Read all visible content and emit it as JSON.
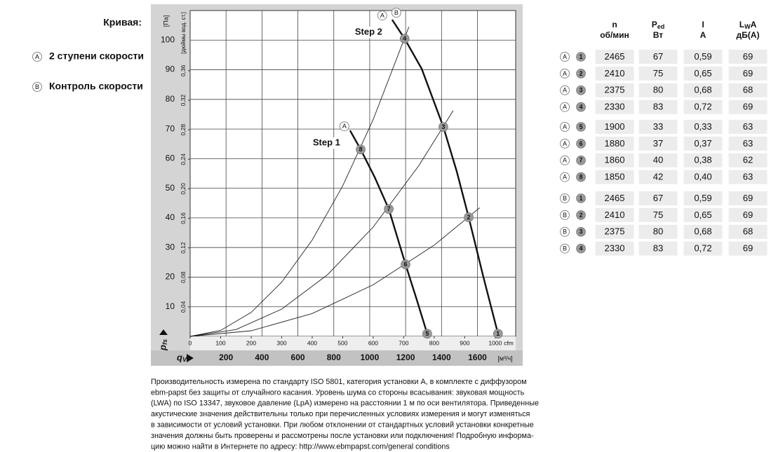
{
  "chart_data": {
    "type": "line",
    "legend_title": "Кривая:",
    "legend": [
      {
        "letter": "A",
        "text": "2 ступени скорости"
      },
      {
        "letter": "B",
        "text": "Контроль скорости"
      }
    ],
    "y_label": "[Па]",
    "y2_label": "[дюймы вод. ст.]",
    "y_symbol": "p",
    "y_symbol_sub": "fs",
    "x_symbol": "q",
    "x_symbol_sub": "V",
    "x_unit": "cfm",
    "x2_unit": "[м³/ч]",
    "xlim": [
      0,
      1067
    ],
    "xticks": [
      0,
      100,
      200,
      300,
      400,
      500,
      600,
      700,
      800,
      900,
      1000
    ],
    "x2lim": [
      0,
      1813
    ],
    "x2ticks": [
      200,
      400,
      600,
      800,
      1000,
      1200,
      1400,
      1600
    ],
    "ylim": [
      0,
      110
    ],
    "yticks": [
      10,
      20,
      30,
      40,
      50,
      60,
      70,
      80,
      90,
      100
    ],
    "y2lim": [
      0,
      0.4416
    ],
    "y2ticks": [
      {
        "value": 0.04,
        "label": "0,04"
      },
      {
        "value": 0.08,
        "label": "0,08"
      },
      {
        "value": 0.12,
        "label": "0,12"
      },
      {
        "value": 0.16,
        "label": "0,16"
      },
      {
        "value": 0.2,
        "label": "0,20"
      },
      {
        "value": 0.24,
        "label": "0,24"
      },
      {
        "value": 0.28,
        "label": "0,28"
      },
      {
        "value": 0.32,
        "label": "0,32"
      },
      {
        "value": 0.36,
        "label": "0,36"
      }
    ],
    "grid": true,
    "series": [
      {
        "label": "Step 2",
        "curves": [
          "A",
          "B"
        ],
        "kind": "characteristic",
        "color": "#111111",
        "x": [
          662,
          703,
          759,
          830,
          874,
          913,
          961,
          1009
        ],
        "values": [
          106.9,
          100.5,
          90.3,
          70.7,
          55.6,
          40.2,
          20.1,
          0.9
        ]
      },
      {
        "label": "Step 1",
        "curves": [
          "A"
        ],
        "kind": "characteristic",
        "color": "#111111",
        "x": [
          524,
          559,
          605,
          651,
          706,
          743,
          777
        ],
        "values": [
          69.5,
          63.1,
          53.7,
          43.0,
          24.3,
          12.3,
          0.9
        ]
      },
      {
        "kind": "system",
        "color": "#222222",
        "x": [
          0,
          100,
          200,
          300,
          400,
          500,
          600,
          717
        ],
        "values": [
          0,
          2.0,
          8.1,
          18.3,
          32.5,
          50.8,
          73.2,
          104.5
        ]
      },
      {
        "kind": "system",
        "color": "#222222",
        "x": [
          0,
          150,
          300,
          450,
          600,
          750,
          862
        ],
        "values": [
          0,
          2.3,
          9.2,
          20.8,
          36.9,
          57.7,
          76.2
        ]
      },
      {
        "kind": "system",
        "color": "#222222",
        "x": [
          0,
          200,
          400,
          600,
          800,
          949
        ],
        "values": [
          0,
          1.9,
          7.7,
          17.4,
          30.8,
          43.4
        ]
      }
    ],
    "points": [
      {
        "label": "1",
        "x": 1009,
        "y": 0.9
      },
      {
        "label": "2",
        "x": 913,
        "y": 40.2
      },
      {
        "label": "3",
        "x": 830,
        "y": 70.7
      },
      {
        "label": "4",
        "x": 703,
        "y": 100.5
      },
      {
        "label": "5",
        "x": 777,
        "y": 0.9
      },
      {
        "label": "6",
        "x": 706,
        "y": 24.3
      },
      {
        "label": "7",
        "x": 651,
        "y": 43.0
      },
      {
        "label": "8",
        "x": 559,
        "y": 63.1
      }
    ],
    "point_color": "#999999"
  },
  "table": {
    "header": [
      {
        "main": "n",
        "unit": "об/мин"
      },
      {
        "main": "P",
        "sub": "ed",
        "unit": "Вт"
      },
      {
        "main": "I",
        "unit": "A"
      },
      {
        "main": "L",
        "sub": "W",
        "after": "A",
        "unit": "дБ(A)"
      }
    ],
    "groups": [
      [
        [
          "A",
          "1",
          "2465",
          "67",
          "0,59",
          "69"
        ],
        [
          "A",
          "2",
          "2410",
          "75",
          "0,65",
          "69"
        ],
        [
          "A",
          "3",
          "2375",
          "80",
          "0,68",
          "68"
        ],
        [
          "A",
          "4",
          "2330",
          "83",
          "0,72",
          "69"
        ]
      ],
      [
        [
          "A",
          "5",
          "1900",
          "33",
          "0,33",
          "63"
        ],
        [
          "A",
          "6",
          "1880",
          "37",
          "0,37",
          "63"
        ],
        [
          "A",
          "7",
          "1860",
          "40",
          "0,38",
          "62"
        ],
        [
          "A",
          "8",
          "1850",
          "42",
          "0,40",
          "63"
        ]
      ],
      [
        [
          "B",
          "1",
          "2465",
          "67",
          "0,59",
          "69"
        ],
        [
          "B",
          "2",
          "2410",
          "75",
          "0,65",
          "69"
        ],
        [
          "B",
          "3",
          "2375",
          "80",
          "0,68",
          "68"
        ],
        [
          "B",
          "4",
          "2330",
          "83",
          "0,72",
          "69"
        ]
      ]
    ]
  },
  "footnote": [
    "Производительность измерена по стандарту ISO 5801, категория установки A, в комплекте с диффузором",
    "ebm-papst без защиты от случайного касания. Уровень шума со стороны всасывания: звуковая мощность",
    "(LWA) по ISO 13347, звуковое давление (LpA) измерено на расстоянии 1 м по оси вентилятора. Приведенные",
    "акустические значения действительны только при перечисленных условиях измерения и могут изменяться",
    "в зависимости от условий установки. При любом отклонении от стандартных условий установки конкретные",
    "значения должны быть проверены и рассмотрены после установки или подключения! Подробную информа-",
    "цию можно найти в Интернете по адресу: http://www.ebmpapst.com/general conditions"
  ]
}
